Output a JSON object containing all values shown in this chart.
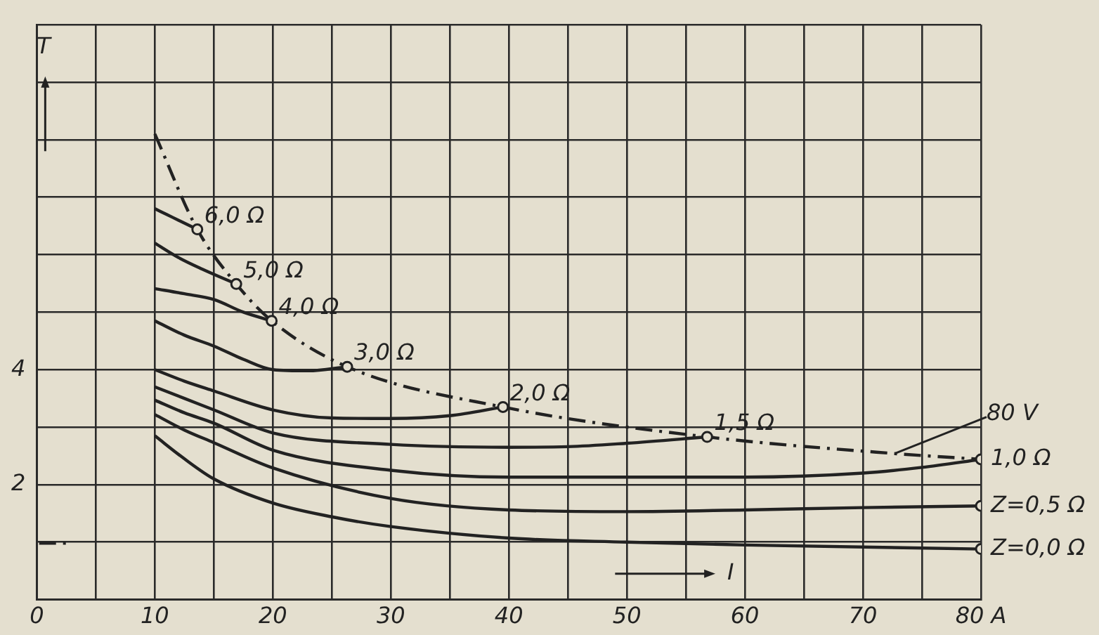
{
  "chart_data": {
    "type": "line",
    "xlabel": "I",
    "ylabel": "T",
    "xlim": [
      0,
      80
    ],
    "ylim": [
      0,
      10
    ],
    "xticks": [
      0,
      {
        "value": 5,
        "label": null
      },
      10,
      {
        "value": 15,
        "label": null
      },
      20,
      {
        "value": 25,
        "label": null
      },
      30,
      {
        "value": 35,
        "label": null
      },
      40,
      {
        "value": 45,
        "label": null
      },
      50,
      {
        "value": 55,
        "label": null
      },
      60,
      {
        "value": 65,
        "label": null
      },
      70,
      {
        "value": 75,
        "label": null
      },
      {
        "value": 80,
        "label": "80 A"
      }
    ],
    "yticks": [
      {
        "value": 0,
        "label": null
      },
      {
        "value": 1,
        "label": null
      },
      2,
      {
        "value": 3,
        "label": null
      },
      4,
      {
        "value": 5,
        "label": null
      },
      {
        "value": 6,
        "label": null
      },
      {
        "value": 7,
        "label": null
      },
      {
        "value": 8,
        "label": null
      },
      {
        "value": 9,
        "label": null
      },
      {
        "value": 10,
        "label": null
      }
    ],
    "grid": true,
    "legend": false,
    "marker": "none",
    "line_style": "solid",
    "series": [
      {
        "name": "6,0 Ω",
        "color": "#222222",
        "x": [
          10,
          11,
          12,
          13.6
        ],
        "values": [
          6.8,
          6.7,
          6.6,
          6.44
        ]
      },
      {
        "name": "5,0 Ω",
        "color": "#222222",
        "x": [
          10,
          12,
          14,
          16.9
        ],
        "values": [
          6.2,
          5.95,
          5.75,
          5.49
        ]
      },
      {
        "name": "4,0 Ω",
        "color": "#222222",
        "x": [
          10,
          12.5,
          15,
          17.5,
          19.9
        ],
        "values": [
          5.41,
          5.32,
          5.22,
          5.0,
          4.85
        ]
      },
      {
        "name": "3,0 Ω",
        "color": "#222222",
        "x": [
          10,
          12.5,
          15,
          17.5,
          20,
          23,
          26.3
        ],
        "values": [
          4.85,
          4.6,
          4.41,
          4.18,
          4.0,
          3.98,
          4.05
        ]
      },
      {
        "name": "2,0 Ω",
        "color": "#222222",
        "x": [
          10,
          12.5,
          15,
          20,
          25,
          30,
          35,
          39.5
        ],
        "values": [
          4.0,
          3.8,
          3.63,
          3.3,
          3.16,
          3.15,
          3.2,
          3.35
        ]
      },
      {
        "name": "1,5 Ω",
        "color": "#222222",
        "x": [
          10,
          12.5,
          15,
          20,
          30,
          40,
          45,
          50,
          56.8
        ],
        "values": [
          3.7,
          3.5,
          3.3,
          2.9,
          2.7,
          2.65,
          2.66,
          2.72,
          2.83
        ]
      },
      {
        "name": "1,0 Ω",
        "color": "#222222",
        "x": [
          10,
          12.5,
          15,
          20,
          30,
          40,
          50,
          60,
          70,
          75,
          80
        ],
        "values": [
          3.47,
          3.25,
          3.07,
          2.6,
          2.25,
          2.13,
          2.13,
          2.13,
          2.2,
          2.3,
          2.44
        ]
      },
      {
        "name": "Z=0,5 Ω",
        "color": "#222222",
        "x": [
          10,
          12.5,
          15,
          20,
          30,
          40,
          50,
          60,
          70,
          80
        ],
        "values": [
          3.22,
          2.95,
          2.73,
          2.29,
          1.76,
          1.56,
          1.53,
          1.56,
          1.6,
          1.63
        ]
      },
      {
        "name": "Z=0,0 Ω",
        "color": "#222222",
        "x": [
          10,
          12.5,
          15,
          20,
          25,
          30,
          40,
          50,
          60,
          80
        ],
        "values": [
          2.85,
          2.45,
          2.1,
          1.68,
          1.44,
          1.27,
          1.07,
          1.0,
          0.95,
          0.88
        ]
      },
      {
        "color": "#222222",
        "line_style": "dashed",
        "x": [
          10,
          13.6,
          16.9,
          19.9,
          26.3,
          39.5,
          56.8,
          72.7,
          80
        ],
        "values": [
          8.1,
          6.44,
          5.49,
          4.85,
          4.05,
          3.35,
          2.83,
          2.54,
          2.44
        ]
      },
      {
        "color": "#222222",
        "line_style": "dashed",
        "x": [
          0.2,
          2.9
        ],
        "values": [
          0.98,
          0.98
        ]
      },
      {
        "type": "scatter",
        "marker": "circle",
        "color": "#222222",
        "x": [
          13.6,
          16.9,
          19.9,
          26.3,
          39.5,
          56.8,
          80,
          80,
          80
        ],
        "values": [
          6.44,
          5.49,
          4.85,
          4.05,
          3.35,
          2.83,
          2.44,
          1.63,
          0.88
        ]
      }
    ],
    "annotations": [
      {
        "text": "80 V",
        "x": 72.7,
        "y": 2.54
      }
    ]
  }
}
